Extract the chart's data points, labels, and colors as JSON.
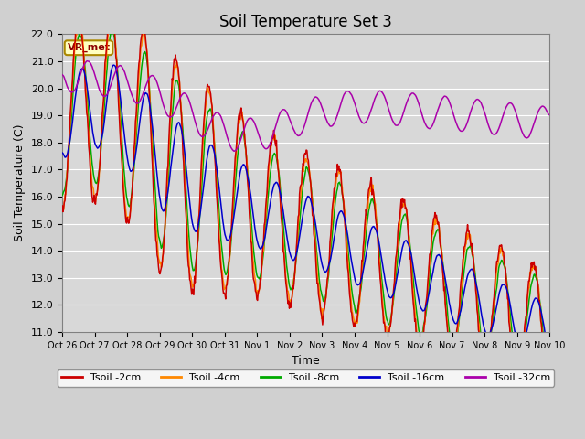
{
  "title": "Soil Temperature Set 3",
  "xlabel": "Time",
  "ylabel": "Soil Temperature (C)",
  "ylim": [
    11.0,
    22.0
  ],
  "yticks": [
    11.0,
    12.0,
    13.0,
    14.0,
    15.0,
    16.0,
    17.0,
    18.0,
    19.0,
    20.0,
    21.0,
    22.0
  ],
  "xtick_labels": [
    "Oct 26",
    "Oct 27",
    "Oct 28",
    "Oct 29",
    "Oct 30",
    "Oct 31",
    "Nov 1",
    "Nov 2",
    "Nov 3",
    "Nov 4",
    "Nov 5",
    "Nov 6",
    "Nov 7",
    "Nov 8",
    "Nov 9",
    "Nov 10"
  ],
  "line_colors": [
    "#cc0000",
    "#ff8800",
    "#00aa00",
    "#0000cc",
    "#aa00aa"
  ],
  "line_labels": [
    "Tsoil -2cm",
    "Tsoil -4cm",
    "Tsoil -8cm",
    "Tsoil -16cm",
    "Tsoil -32cm"
  ],
  "annotation_text": "VR_met",
  "fig_bg_color": "#d0d0d0",
  "plot_bg_color": "#d8d8d8",
  "grid_color": "#ffffff",
  "title_fontsize": 12,
  "axis_fontsize": 9,
  "tick_fontsize": 8,
  "legend_fontsize": 8
}
